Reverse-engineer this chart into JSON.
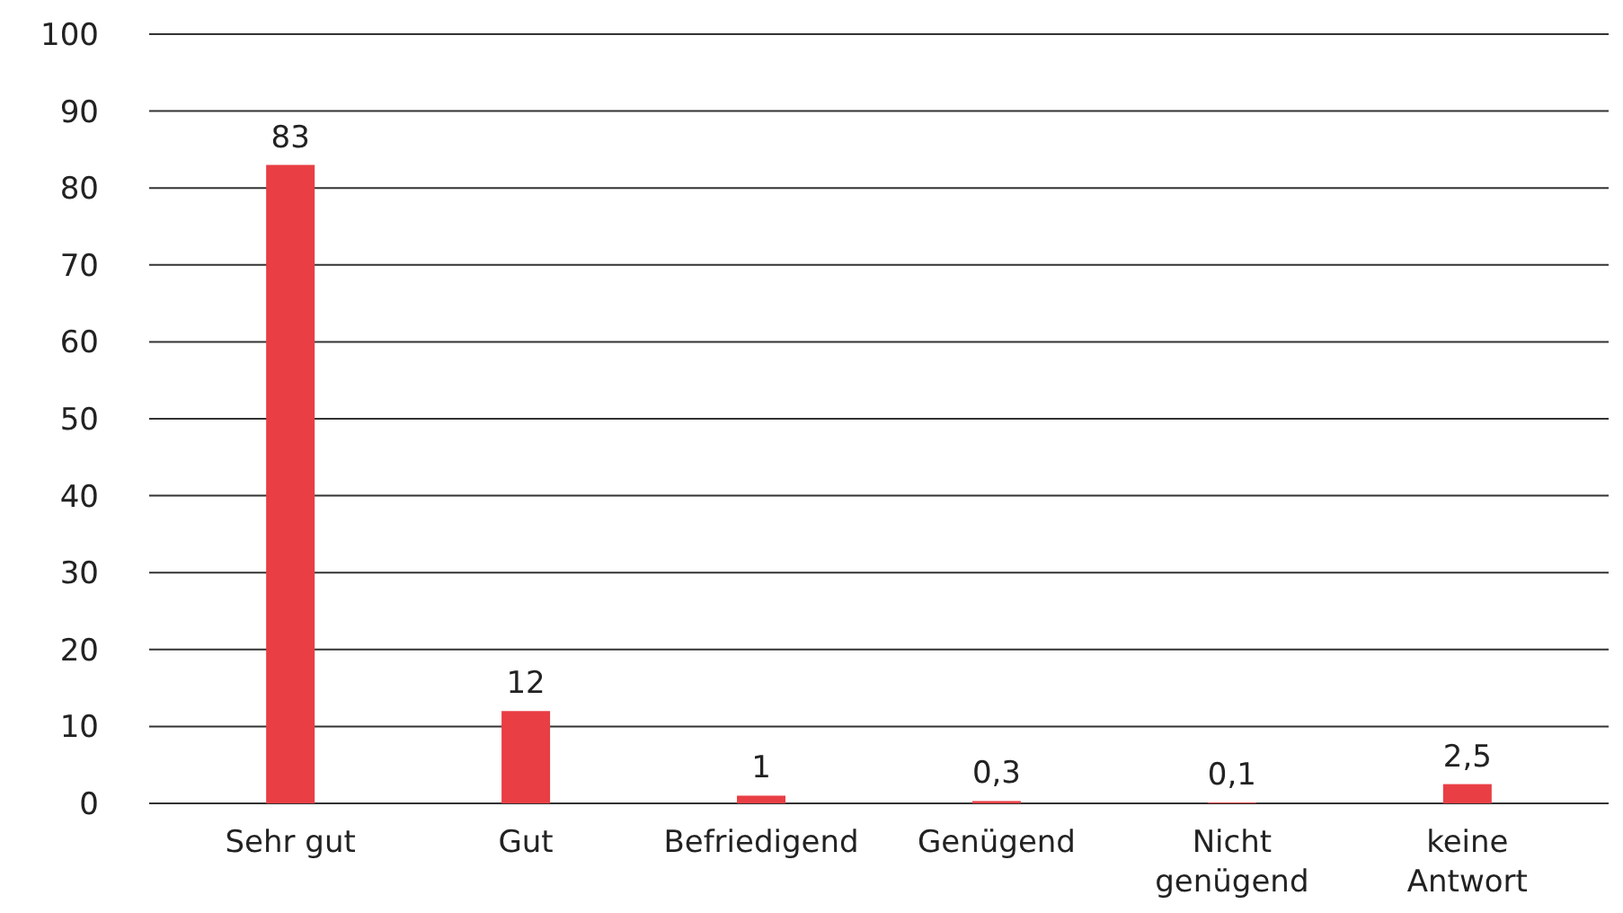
{
  "chart_data": {
    "type": "bar",
    "categories": [
      "Sehr gut",
      "Gut",
      "Befriedigend",
      "Genügend",
      "Nicht genügend",
      "keine Antwort"
    ],
    "values": [
      83,
      12,
      1,
      0.3,
      0.1,
      2.5
    ],
    "value_labels": [
      "83",
      "12",
      "1",
      "0,3",
      "0,1",
      "2,5"
    ],
    "color": "#e83e44",
    "ylim": [
      0,
      100
    ],
    "yticks": [
      0,
      10,
      20,
      30,
      40,
      50,
      60,
      70,
      80,
      90,
      100
    ],
    "grid": "y"
  }
}
